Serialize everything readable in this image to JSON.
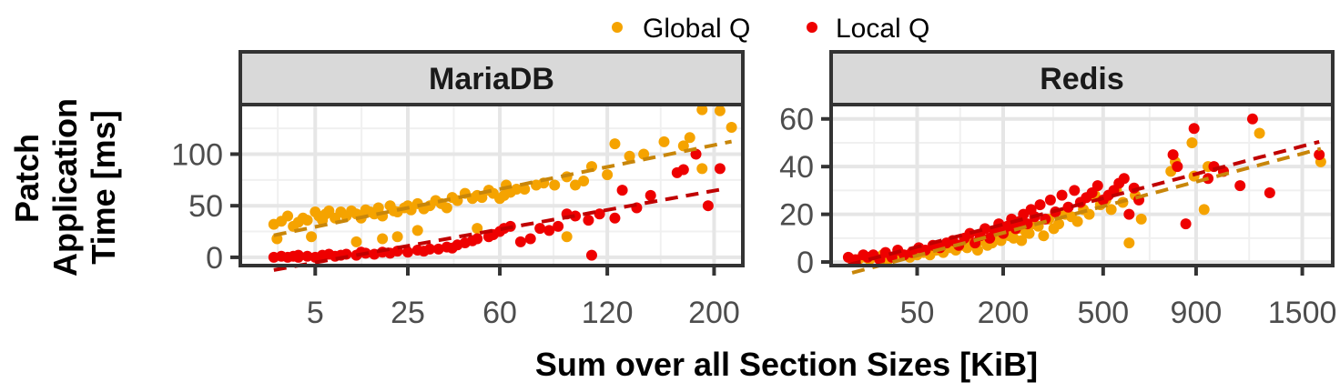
{
  "chart_data": {
    "type": "scatter",
    "xlabel": "Sum over all Section Sizes [KiB]",
    "ylabel_lines": [
      "Patch",
      "Application",
      "Time [ms]"
    ],
    "x_scale": "sqrt",
    "legend": {
      "placement": "top",
      "entries": [
        {
          "name": "Global Q",
          "color": "#F5A300"
        },
        {
          "name": "Local Q",
          "color": "#EE0000"
        }
      ]
    },
    "trend_colors": {
      "Global Q": "#C8860A",
      "Local Q": "#C00000"
    },
    "grid": true,
    "panels": [
      {
        "title": "MariaDB",
        "xlim": [
          0,
          225
        ],
        "ylim": [
          -8,
          148
        ],
        "xticks": [
          5,
          25,
          60,
          120,
          200
        ],
        "yticks": [
          0,
          50,
          100
        ],
        "series": [
          {
            "name": "Global Q",
            "x": [
              1,
              1.5,
              2,
              2.5,
              3,
              3.5,
              4,
              5,
              5.5,
              6,
              6.5,
              7,
              8,
              9,
              10,
              11,
              12,
              13,
              14,
              15,
              16,
              17,
              18,
              20,
              21,
              22,
              24,
              25,
              26,
              28,
              30,
              32,
              34,
              36,
              38,
              40,
              42,
              45,
              48,
              50,
              52,
              55,
              57,
              60,
              62,
              63,
              65,
              68,
              72,
              78,
              82,
              88,
              95,
              100,
              105,
              110,
              120,
              125,
              135,
              145,
              160,
              175,
              180,
              190,
              205,
              215,
              1.2,
              4.5,
              12,
              18,
              22,
              28,
              50,
              95,
              190
            ],
            "y": [
              32,
              35,
              40,
              30,
              34,
              38,
              36,
              44,
              40,
              36,
              42,
              45,
              38,
              44,
              40,
              45,
              42,
              38,
              46,
              44,
              42,
              48,
              40,
              50,
              45,
              44,
              48,
              50,
              46,
              52,
              47,
              50,
              55,
              52,
              48,
              58,
              55,
              62,
              57,
              60,
              58,
              65,
              62,
              57,
              60,
              70,
              63,
              66,
              66,
              70,
              72,
              70,
              78,
              70,
              74,
              88,
              80,
              110,
              98,
              100,
              112,
              108,
              116,
              143,
              142,
              126,
              18,
              20,
              15,
              18,
              20,
              26,
              28,
              20,
              86
            ]
          },
          {
            "name": "Global Q",
            "x": [],
            "y": []
          },
          {
            "name": "Local Q",
            "x": [
              1,
              1.5,
              2,
              2.5,
              3,
              4,
              5,
              6,
              7,
              8,
              9,
              10,
              12,
              14,
              16,
              18,
              20,
              22,
              25,
              28,
              30,
              32,
              35,
              38,
              40,
              42,
              45,
              48,
              50,
              55,
              57,
              60,
              62,
              65,
              70,
              75,
              80,
              85,
              90,
              95,
              100,
              108,
              115,
              125,
              130,
              140,
              150,
              170,
              175,
              185,
              195,
              205,
              3,
              13,
              110
            ],
            "y": [
              0,
              1,
              0,
              1,
              2,
              1,
              0,
              2,
              3,
              1,
              2,
              3,
              2,
              4,
              3,
              5,
              4,
              6,
              5,
              7,
              6,
              8,
              8,
              10,
              9,
              12,
              14,
              16,
              18,
              20,
              22,
              25,
              28,
              30,
              15,
              18,
              28,
              26,
              30,
              42,
              40,
              36,
              42,
              38,
              65,
              48,
              60,
              82,
              85,
              100,
              50,
              86,
              0,
              5,
              2
            ]
          }
        ]
      },
      {
        "title": "Redis",
        "xlim": [
          0,
          1700
        ],
        "ylim": [
          -1.5,
          66
        ],
        "xticks": [
          50,
          200,
          500,
          900,
          1500
        ],
        "yticks": [
          0,
          20,
          40,
          60
        ],
        "series": [
          {
            "name": "Global Q",
            "x": [
              3,
              5,
              8,
              10,
              14,
              18,
              22,
              28,
              35,
              42,
              50,
              58,
              66,
              75,
              85,
              95,
              105,
              115,
              125,
              135,
              145,
              155,
              165,
              175,
              185,
              195,
              205,
              215,
              225,
              235,
              245,
              255,
              265,
              275,
              290,
              305,
              320,
              335,
              350,
              370,
              390,
              410,
              430,
              450,
              470,
              490,
              510,
              530,
              550,
              575,
              600,
              625,
              650,
              780,
              800,
              880,
              890,
              940,
              960,
              1040,
              1240,
              1620
            ],
            "y": [
              1,
              1,
              2,
              1,
              2,
              3,
              1,
              2,
              3,
              2,
              3,
              4,
              3,
              5,
              4,
              6,
              5,
              7,
              6,
              8,
              5,
              9,
              7,
              8,
              10,
              9,
              12,
              11,
              10,
              14,
              9,
              13,
              12,
              16,
              15,
              11,
              18,
              14,
              16,
              20,
              19,
              17,
              22,
              20,
              28,
              24,
              26,
              22,
              30,
              25,
              8,
              28,
              18,
              38,
              42,
              50,
              36,
              22,
              40,
              38,
              54,
              42
            ]
          },
          {
            "name": "Local Q",
            "x": [
              2,
              4,
              7,
              9,
              12,
              16,
              20,
              25,
              30,
              36,
              44,
              52,
              60,
              70,
              80,
              90,
              100,
              110,
              120,
              130,
              140,
              150,
              160,
              170,
              180,
              190,
              200,
              210,
              220,
              230,
              240,
              250,
              260,
              270,
              280,
              295,
              310,
              325,
              340,
              360,
              380,
              400,
              420,
              440,
              460,
              480,
              500,
              520,
              540,
              560,
              580,
              600,
              620,
              640,
              790,
              810,
              850,
              890,
              960,
              990,
              1040,
              1130,
              1200,
              1300,
              1610
            ],
            "y": [
              2,
              1,
              3,
              2,
              3,
              1,
              4,
              2,
              5,
              3,
              4,
              6,
              5,
              7,
              6,
              8,
              9,
              7,
              10,
              12,
              8,
              11,
              14,
              10,
              13,
              16,
              12,
              15,
              18,
              14,
              17,
              20,
              16,
              22,
              19,
              24,
              18,
              26,
              21,
              28,
              23,
              30,
              25,
              27,
              29,
              32,
              26,
              28,
              30,
              33,
              35,
              20,
              31,
              26,
              45,
              40,
              16,
              56,
              35,
              40,
              38,
              32,
              60,
              29,
              45
            ]
          }
        ]
      }
    ]
  }
}
